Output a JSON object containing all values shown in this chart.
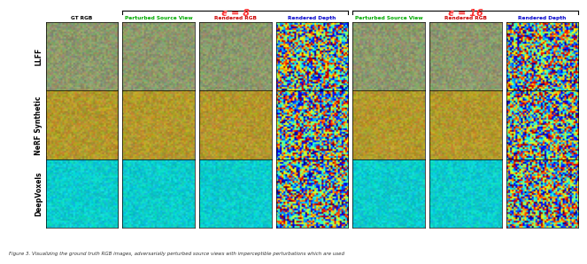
{
  "title_epsilon8": "ϵ = 8",
  "title_epsilon16": "ϵ = 16",
  "col_labels": [
    "GT RGB",
    "Perturbed Source View",
    "Rendered RGB",
    "Rendered Depth",
    "Perturbed Source View",
    "Rendered RGB",
    "Rendered Depth"
  ],
  "row_labels": [
    "LLFF",
    "NeRF Synthetic",
    "DeepVoxels"
  ],
  "caption": "Figure 3. Visualizing the ground truth RGB images, adversarially perturbed source views with imperceptible perturbations which are used",
  "title_color_8": "#ff3333",
  "title_color_16": "#ff3333",
  "col_label_green": "#00aa00",
  "col_label_red": "#cc0000",
  "col_label_blue": "#0000cc",
  "col_label_black": "#000000",
  "background": "#ffffff",
  "border_color": "#000000",
  "n_rows": 3,
  "n_cols": 7,
  "fig_width": 6.4,
  "fig_height": 2.83
}
